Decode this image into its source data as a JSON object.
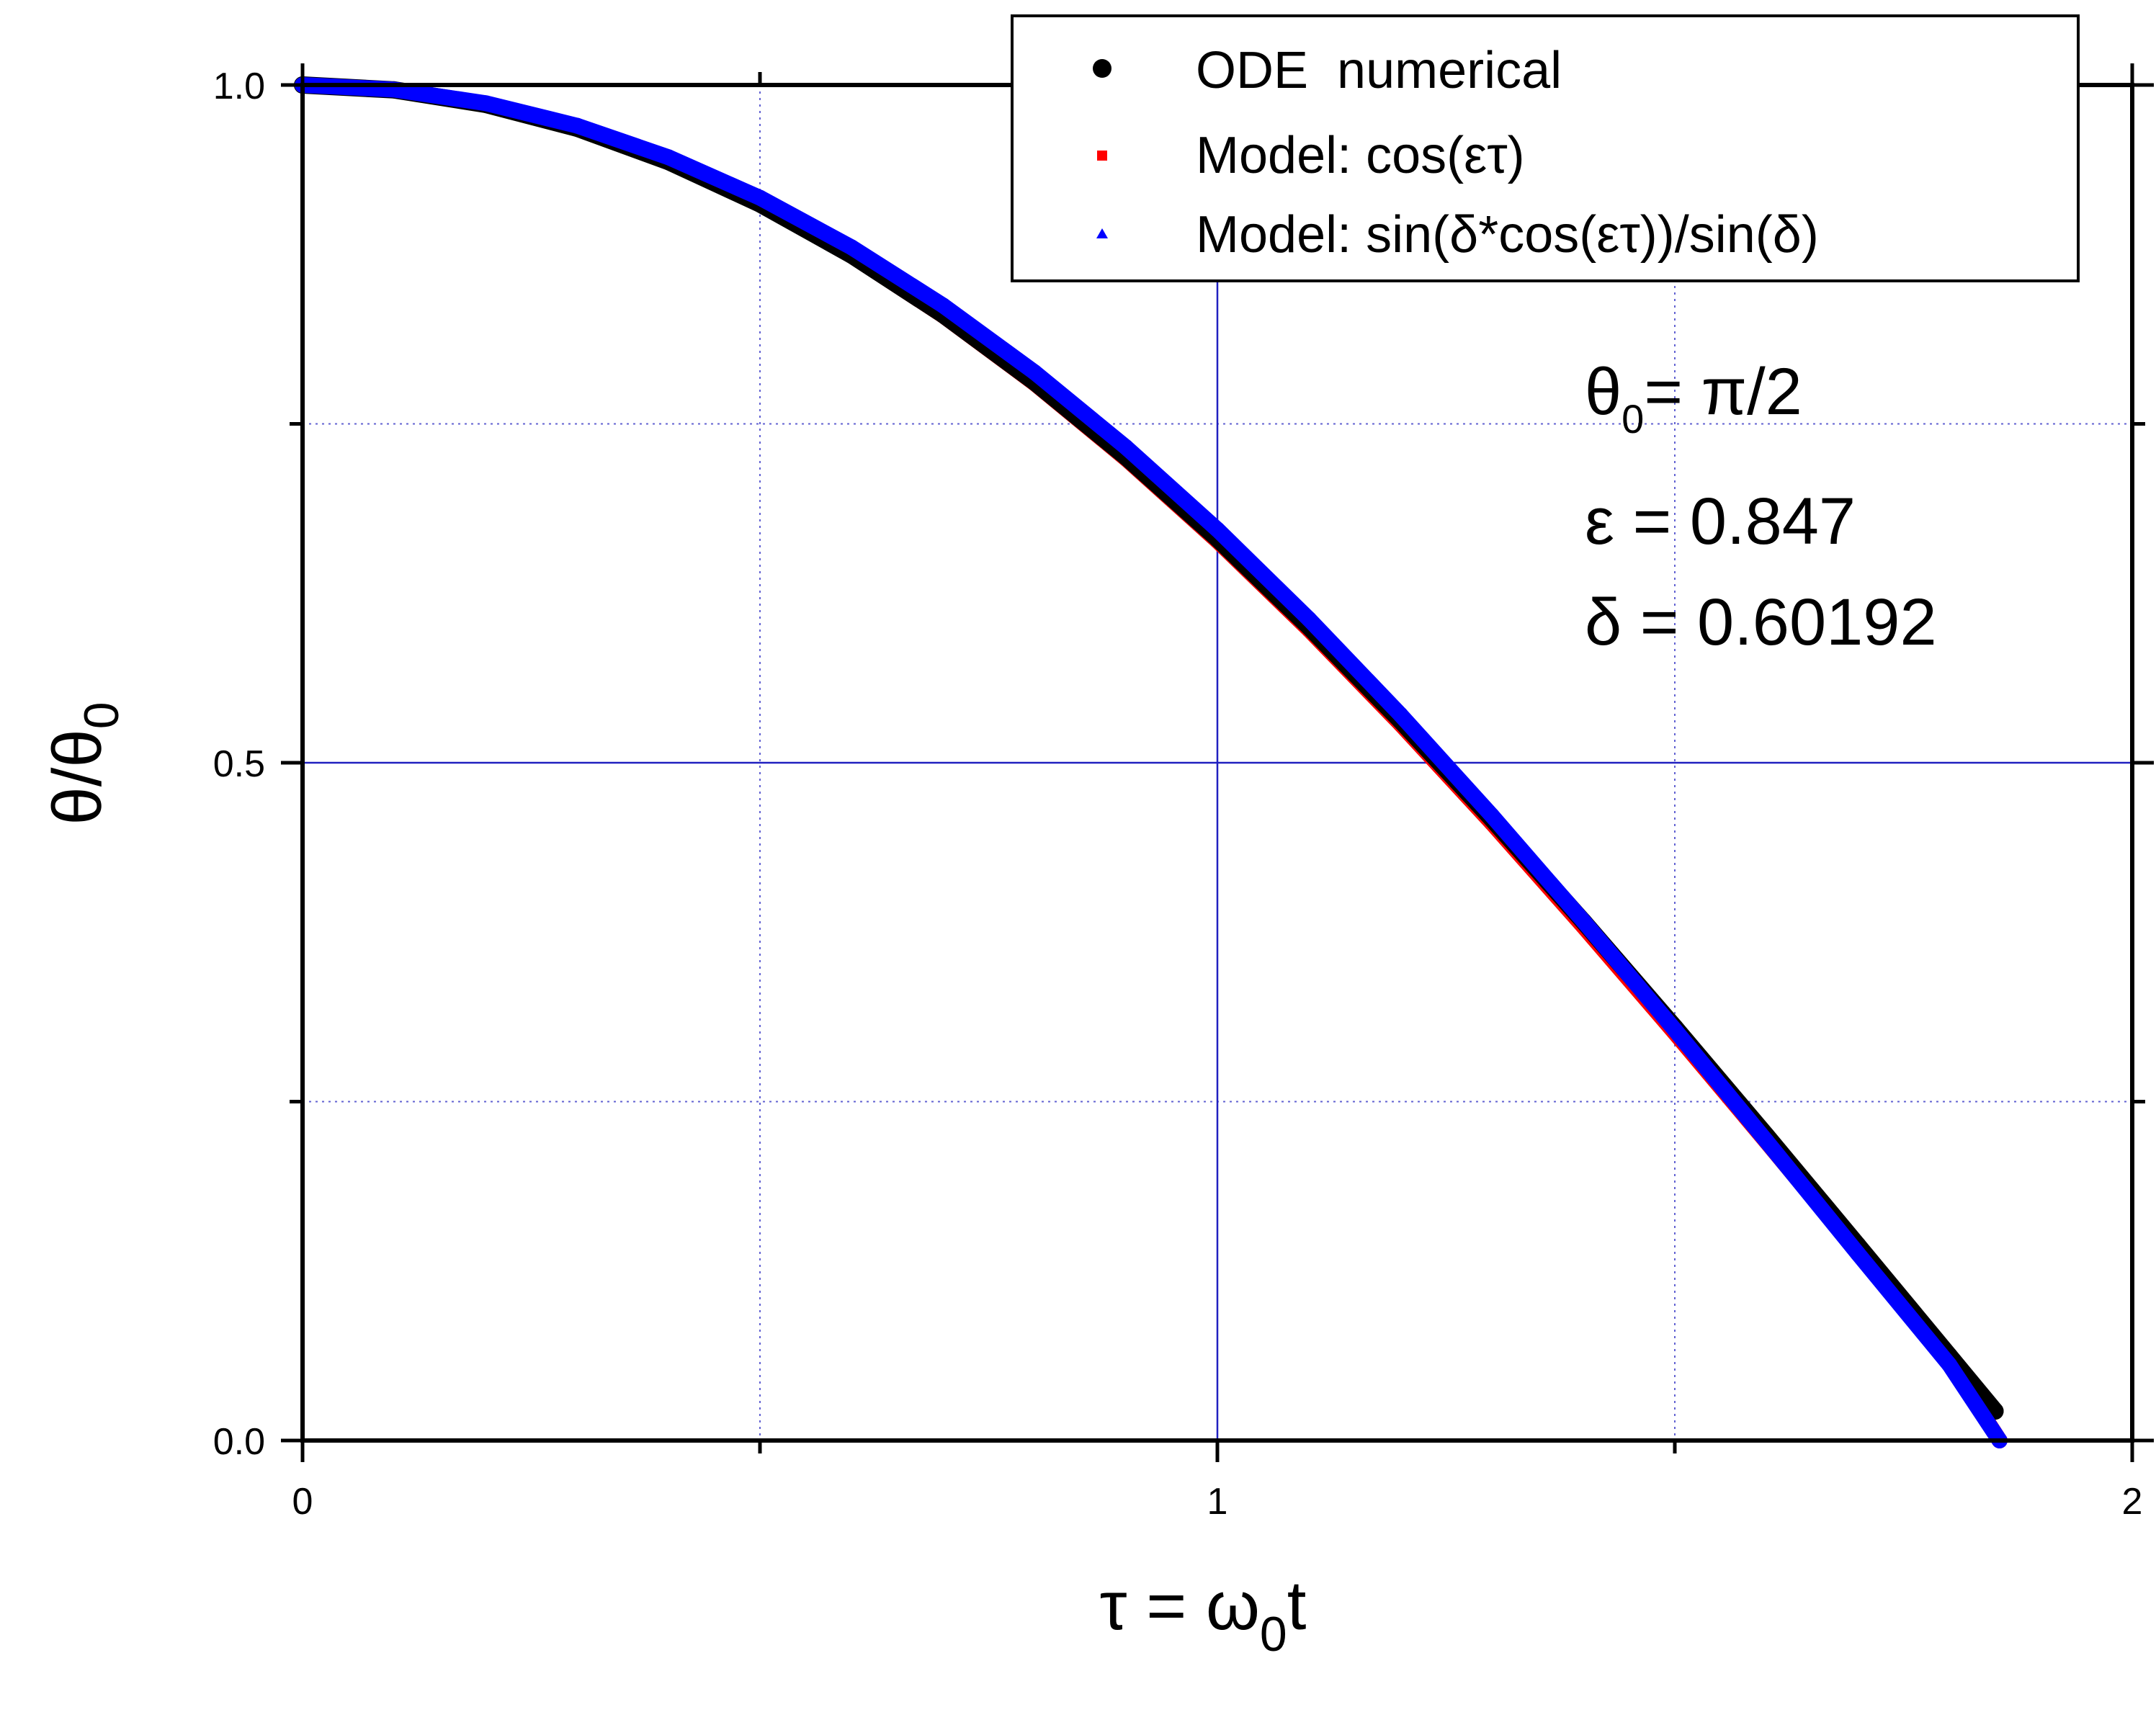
{
  "chart_data": {
    "type": "scatter",
    "title": "",
    "xlabel": {
      "main": "τ = ω",
      "sub": "0",
      "tail": "t"
    },
    "ylabel": {
      "main": "θ/θ",
      "sub": "0"
    },
    "xlim": [
      0,
      2
    ],
    "ylim": [
      0,
      1
    ],
    "x_ticks": [
      {
        "value": 0,
        "label": "0"
      },
      {
        "value": 1,
        "label": "1"
      },
      {
        "value": 2,
        "label": "2"
      }
    ],
    "y_ticks": [
      {
        "value": 0.0,
        "label": "0.0"
      },
      {
        "value": 0.5,
        "label": "0.5"
      },
      {
        "value": 1.0,
        "label": "1.0"
      }
    ],
    "grid": {
      "major": true,
      "minor": true,
      "color": "#2020c0"
    },
    "legend": {
      "placement": "top-right",
      "entries": [
        {
          "label": "ODE  numerical",
          "marker": "circle",
          "color": "#000000"
        },
        {
          "label": "Model: cos(ετ)",
          "marker": "square",
          "color": "#ff0000"
        },
        {
          "label": "Model: sin(δ*cos(ετ))/sin(δ)",
          "marker": "triangle",
          "color": "#0000ff"
        }
      ]
    },
    "annotations": {
      "theta0": {
        "main": "θ",
        "sub": "0",
        "tail": "= π/2"
      },
      "epsilon": "ε = 0.847",
      "delta": "δ = 0.60192"
    },
    "series": [
      {
        "name": "ODE  numerical",
        "color": "#000000",
        "x": [
          0,
          0.1,
          0.2,
          0.3,
          0.4,
          0.5,
          0.6,
          0.7,
          0.8,
          0.9,
          1.0,
          1.1,
          1.2,
          1.3,
          1.4,
          1.5,
          1.6,
          1.7,
          1.8,
          1.85
        ],
        "y": [
          1.0,
          0.9964,
          0.9857,
          0.9681,
          0.9435,
          0.9123,
          0.8746,
          0.8307,
          0.781,
          0.7257,
          0.6654,
          0.6004,
          0.5313,
          0.4586,
          0.3829,
          0.3048,
          0.225,
          0.144,
          0.0625,
          0.0217
        ]
      },
      {
        "name": "Model: cos(ετ)",
        "color": "#ff0000",
        "x": [
          0,
          0.1,
          0.2,
          0.3,
          0.4,
          0.5,
          0.6,
          0.7,
          0.8,
          0.9,
          1.0,
          1.1,
          1.2,
          1.3,
          1.4,
          1.5,
          1.6,
          1.7,
          1.8,
          1.855
        ],
        "y": [
          1.0,
          0.9964,
          0.9857,
          0.968,
          0.9434,
          0.912,
          0.8741,
          0.83,
          0.78,
          0.7244,
          0.6637,
          0.5983,
          0.5287,
          0.4555,
          0.3793,
          0.3008,
          0.2205,
          0.1392,
          0.0576,
          0.0
        ]
      },
      {
        "name": "Model: sin(δ*cos(ετ))/sin(δ)",
        "color": "#0000ff",
        "x": [
          0,
          0.1,
          0.2,
          0.3,
          0.4,
          0.5,
          0.6,
          0.7,
          0.8,
          0.9,
          1.0,
          1.1,
          1.2,
          1.3,
          1.4,
          1.5,
          1.6,
          1.7,
          1.8,
          1.855
        ],
        "y": [
          1.0,
          0.9966,
          0.9866,
          0.97,
          0.9467,
          0.9168,
          0.8803,
          0.8374,
          0.7881,
          0.7328,
          0.672,
          0.606,
          0.5355,
          0.461,
          0.3832,
          0.303,
          0.221,
          0.138,
          0.056,
          0.0
        ]
      }
    ]
  }
}
